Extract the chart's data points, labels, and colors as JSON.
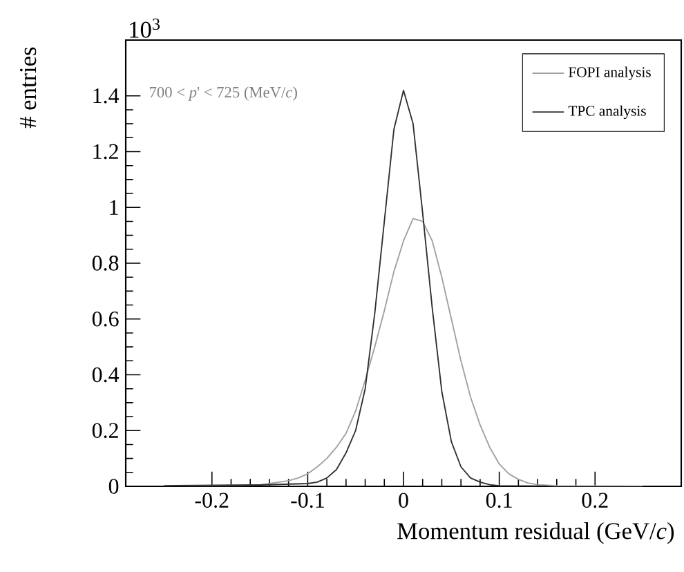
{
  "chart_data": {
    "type": "line",
    "xlabel": "Momentum residual (GeV/*c*)",
    "ylabel": "# entries",
    "annotations": [
      "700 < *p*' < 725 (MeV/*c*)",
      "10$^{3}$"
    ],
    "xlim": [
      -0.29,
      0.29
    ],
    "ylim": [
      0,
      1.6
    ],
    "xticks": [
      -0.2,
      -0.1,
      0,
      0.1,
      0.2
    ],
    "yticks": [
      0,
      0.2,
      0.4,
      0.6,
      0.8,
      1,
      1.2,
      1.4
    ],
    "legend": "top right",
    "grid": false,
    "series": [
      {
        "name": "FOPI analysis",
        "color": "#a0a0a0",
        "x": [
          -0.25,
          -0.15,
          -0.12,
          -0.11,
          -0.1,
          -0.09,
          -0.08,
          -0.07,
          -0.06,
          -0.05,
          -0.04,
          -0.03,
          -0.02,
          -0.01,
          0,
          0.01,
          0.02,
          0.03,
          0.04,
          0.05,
          0.06,
          0.07,
          0.08,
          0.09,
          0.1,
          0.11,
          0.12,
          0.13,
          0.14,
          0.16,
          0.25
        ],
        "values": [
          0.001,
          0.005,
          0.02,
          0.03,
          0.045,
          0.07,
          0.1,
          0.14,
          0.19,
          0.27,
          0.38,
          0.5,
          0.63,
          0.77,
          0.88,
          0.96,
          0.95,
          0.88,
          0.75,
          0.6,
          0.45,
          0.32,
          0.22,
          0.14,
          0.08,
          0.045,
          0.025,
          0.012,
          0.006,
          0.002,
          0.001
        ]
      },
      {
        "name": "TPC analysis",
        "color": "#303030",
        "x": [
          -0.25,
          -0.15,
          -0.1,
          -0.09,
          -0.08,
          -0.07,
          -0.06,
          -0.05,
          -0.04,
          -0.03,
          -0.02,
          -0.01,
          0,
          0.01,
          0.02,
          0.03,
          0.04,
          0.05,
          0.06,
          0.07,
          0.08,
          0.09,
          0.1,
          0.15
        ],
        "values": [
          0.002,
          0.005,
          0.01,
          0.015,
          0.03,
          0.06,
          0.12,
          0.2,
          0.35,
          0.62,
          0.95,
          1.28,
          1.42,
          1.3,
          0.98,
          0.64,
          0.34,
          0.16,
          0.07,
          0.03,
          0.015,
          0.006,
          0.002,
          0.001
        ]
      }
    ]
  }
}
